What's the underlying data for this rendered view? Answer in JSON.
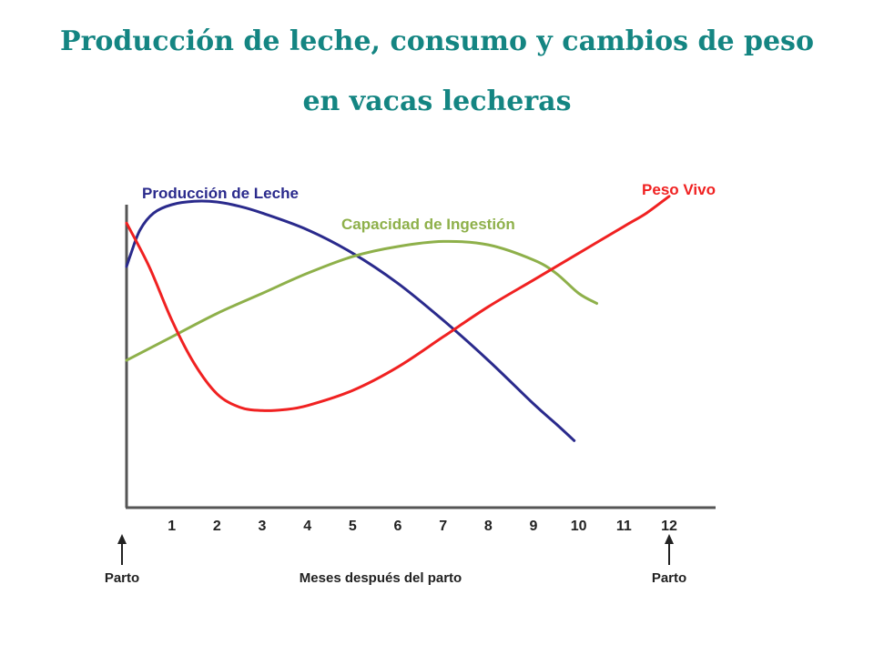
{
  "page": {
    "title_line1": "Producción de leche, consumo y cambios de peso",
    "title_line2": "en vacas lecheras"
  },
  "chart_data": {
    "type": "line",
    "title": "Producción de leche, consumo y cambios de peso en vacas lecheras",
    "xlabel": "Meses después del parto",
    "ylabel": "",
    "xlim": [
      0,
      12.5
    ],
    "ylim": [
      0,
      100
    ],
    "x_ticks": [
      "1",
      "2",
      "3",
      "4",
      "5",
      "6",
      "7",
      "8",
      "9",
      "10",
      "11",
      "12"
    ],
    "grid": false,
    "annotations": [
      {
        "label": "Parto",
        "x": 0
      },
      {
        "label": "Parto",
        "x": 12
      }
    ],
    "series": [
      {
        "name": "Producción de Leche",
        "color": "#2a2a8c",
        "x": [
          0,
          0.1,
          0.3,
          0.6,
          1.0,
          1.5,
          2.0,
          2.5,
          3.0,
          4.0,
          5.0,
          6.0,
          7.0,
          8.0,
          9.0,
          9.5,
          9.9
        ],
        "y": [
          72,
          76,
          83,
          88,
          90.5,
          91.5,
          91.3,
          90,
          88,
          83,
          76,
          67,
          56,
          44,
          31,
          25,
          20
        ]
      },
      {
        "name": "Capacidad de Ingestión",
        "color": "#8eb04a",
        "x": [
          0,
          1,
          2,
          3,
          4,
          5,
          6,
          7,
          8,
          9,
          9.5,
          10,
          10.4
        ],
        "y": [
          44,
          51,
          58,
          64,
          70,
          75,
          78,
          79.5,
          78.5,
          74,
          70,
          64,
          61
        ]
      },
      {
        "name": "Peso Vivo",
        "color": "#f02121",
        "x": [
          0,
          0.5,
          1.0,
          1.5,
          2.0,
          2.5,
          3.0,
          3.5,
          4.0,
          5.0,
          6.0,
          7.0,
          8.0,
          9.0,
          10.0,
          11.0,
          11.5,
          12.0
        ],
        "y": [
          85,
          72,
          56,
          43,
          34,
          30,
          29,
          29.3,
          30.5,
          35,
          42,
          51,
          60,
          68,
          76,
          84,
          88,
          93
        ]
      }
    ]
  }
}
